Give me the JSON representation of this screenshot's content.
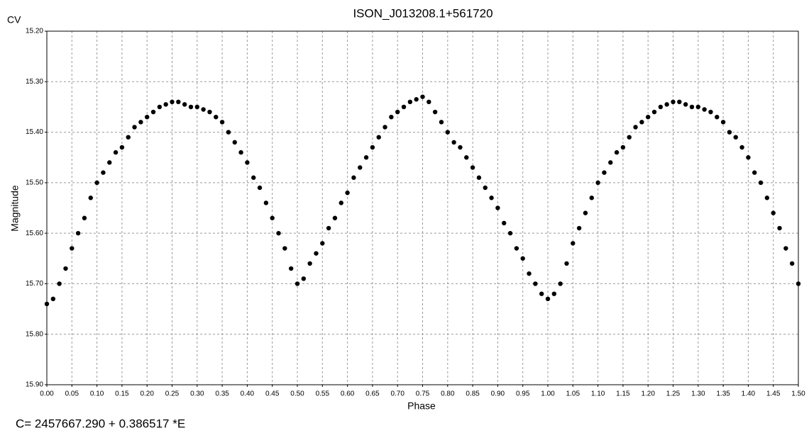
{
  "chart_data": {
    "type": "scatter",
    "title": "ISON_J013208.1+561720",
    "corner_label": "CV",
    "x_label": "Phase",
    "y_label": "Magnitude",
    "footer": "C= 2457667.290 + 0.386517 *E",
    "color": "#000000",
    "grid": true,
    "y_inverted": true,
    "xlim": [
      0,
      1.5
    ],
    "ylim": [
      15.2,
      15.9
    ],
    "xticks": [
      {
        "value": 0,
        "label": "0.00"
      },
      {
        "value": 0.05,
        "label": "0.05"
      },
      {
        "value": 0.1,
        "label": "0.10"
      },
      {
        "value": 0.15,
        "label": "0.15"
      },
      {
        "value": 0.2,
        "label": "0.20"
      },
      {
        "value": 0.25,
        "label": "0.25"
      },
      {
        "value": 0.3,
        "label": "0.30"
      },
      {
        "value": 0.35,
        "label": "0.35"
      },
      {
        "value": 0.4,
        "label": "0.40"
      },
      {
        "value": 0.45,
        "label": "0.45"
      },
      {
        "value": 0.5,
        "label": "0.50"
      },
      {
        "value": 0.55,
        "label": "0.55"
      },
      {
        "value": 0.6,
        "label": "0.60"
      },
      {
        "value": 0.65,
        "label": "0.65"
      },
      {
        "value": 0.7,
        "label": "0.70"
      },
      {
        "value": 0.75,
        "label": "0.75"
      },
      {
        "value": 0.8,
        "label": "0.80"
      },
      {
        "value": 0.85,
        "label": "0.85"
      },
      {
        "value": 0.9,
        "label": "0.90"
      },
      {
        "value": 0.95,
        "label": "0.95"
      },
      {
        "value": 1,
        "label": "1.00"
      },
      {
        "value": 1.05,
        "label": "1.05"
      },
      {
        "value": 1.1,
        "label": "1.10"
      },
      {
        "value": 1.15,
        "label": "1.15"
      },
      {
        "value": 1.2,
        "label": "1.20"
      },
      {
        "value": 1.25,
        "label": "1.25"
      },
      {
        "value": 1.3,
        "label": "1.30"
      },
      {
        "value": 1.35,
        "label": "1.35"
      },
      {
        "value": 1.4,
        "label": "1.40"
      },
      {
        "value": 1.45,
        "label": "1.45"
      },
      {
        "value": 1.5,
        "label": "1.50"
      }
    ],
    "yticks": [
      {
        "value": 15.2,
        "label": "15.20"
      },
      {
        "value": 15.3,
        "label": "15.30"
      },
      {
        "value": 15.4,
        "label": "15.40"
      },
      {
        "value": 15.5,
        "label": "15.50"
      },
      {
        "value": 15.6,
        "label": "15.60"
      },
      {
        "value": 15.7,
        "label": "15.70"
      },
      {
        "value": 15.8,
        "label": "15.80"
      },
      {
        "value": 15.9,
        "label": "15.90"
      }
    ],
    "x": [
      0,
      0.0125,
      0.025,
      0.0375,
      0.05,
      0.0625,
      0.075,
      0.0875,
      0.1,
      0.1125,
      0.125,
      0.1375,
      0.15,
      0.1625,
      0.175,
      0.1875,
      0.2,
      0.2125,
      0.225,
      0.2375,
      0.25,
      0.2625,
      0.275,
      0.2875,
      0.3,
      0.3125,
      0.325,
      0.3375,
      0.35,
      0.3625,
      0.375,
      0.3875,
      0.4,
      0.4125,
      0.425,
      0.4375,
      0.45,
      0.4625,
      0.475,
      0.4875,
      0.5,
      0.5125,
      0.525,
      0.5375,
      0.55,
      0.5625,
      0.575,
      0.5875,
      0.6,
      0.6125,
      0.625,
      0.6375,
      0.65,
      0.6625,
      0.675,
      0.6875,
      0.7,
      0.7125,
      0.725,
      0.7375,
      0.75,
      0.7625,
      0.775,
      0.7875,
      0.8,
      0.8125,
      0.825,
      0.8375,
      0.85,
      0.8625,
      0.875,
      0.8875,
      0.9,
      0.9125,
      0.925,
      0.9375,
      0.95,
      0.9625,
      0.975,
      0.9875,
      1,
      1.0125,
      1.025,
      1.0375,
      1.05,
      1.0625,
      1.075,
      1.0875,
      1.1,
      1.1125,
      1.125,
      1.1375,
      1.15,
      1.1625,
      1.175,
      1.1875,
      1.2,
      1.2125,
      1.225,
      1.2375,
      1.25,
      1.2625,
      1.275,
      1.2875,
      1.3,
      1.3125,
      1.325,
      1.3375,
      1.35,
      1.3625,
      1.375,
      1.3875,
      1.4,
      1.4125,
      1.425,
      1.4375,
      1.45,
      1.4625,
      1.475,
      1.4875,
      1.5
    ],
    "values": [
      15.74,
      15.73,
      15.7,
      15.67,
      15.63,
      15.6,
      15.57,
      15.53,
      15.5,
      15.48,
      15.46,
      15.44,
      15.43,
      15.41,
      15.39,
      15.38,
      15.37,
      15.36,
      15.35,
      15.345,
      15.34,
      15.34,
      15.345,
      15.35,
      15.35,
      15.355,
      15.36,
      15.37,
      15.38,
      15.4,
      15.42,
      15.44,
      15.46,
      15.49,
      15.51,
      15.54,
      15.57,
      15.6,
      15.63,
      15.67,
      15.7,
      15.69,
      15.66,
      15.64,
      15.62,
      15.59,
      15.57,
      15.54,
      15.52,
      15.49,
      15.47,
      15.45,
      15.43,
      15.41,
      15.39,
      15.37,
      15.36,
      15.35,
      15.34,
      15.335,
      15.33,
      15.34,
      15.36,
      15.38,
      15.4,
      15.42,
      15.43,
      15.45,
      15.47,
      15.49,
      15.51,
      15.53,
      15.55,
      15.58,
      15.6,
      15.63,
      15.65,
      15.68,
      15.7,
      15.72,
      15.73,
      15.72,
      15.7,
      15.66,
      15.62,
      15.59,
      15.56,
      15.53,
      15.5,
      15.48,
      15.46,
      15.44,
      15.43,
      15.41,
      15.39,
      15.38,
      15.37,
      15.36,
      15.35,
      15.345,
      15.34,
      15.34,
      15.345,
      15.35,
      15.35,
      15.355,
      15.36,
      15.37,
      15.38,
      15.4,
      15.41,
      15.43,
      15.45,
      15.48,
      15.5,
      15.53,
      15.56,
      15.59,
      15.63,
      15.66,
      15.7
    ]
  }
}
